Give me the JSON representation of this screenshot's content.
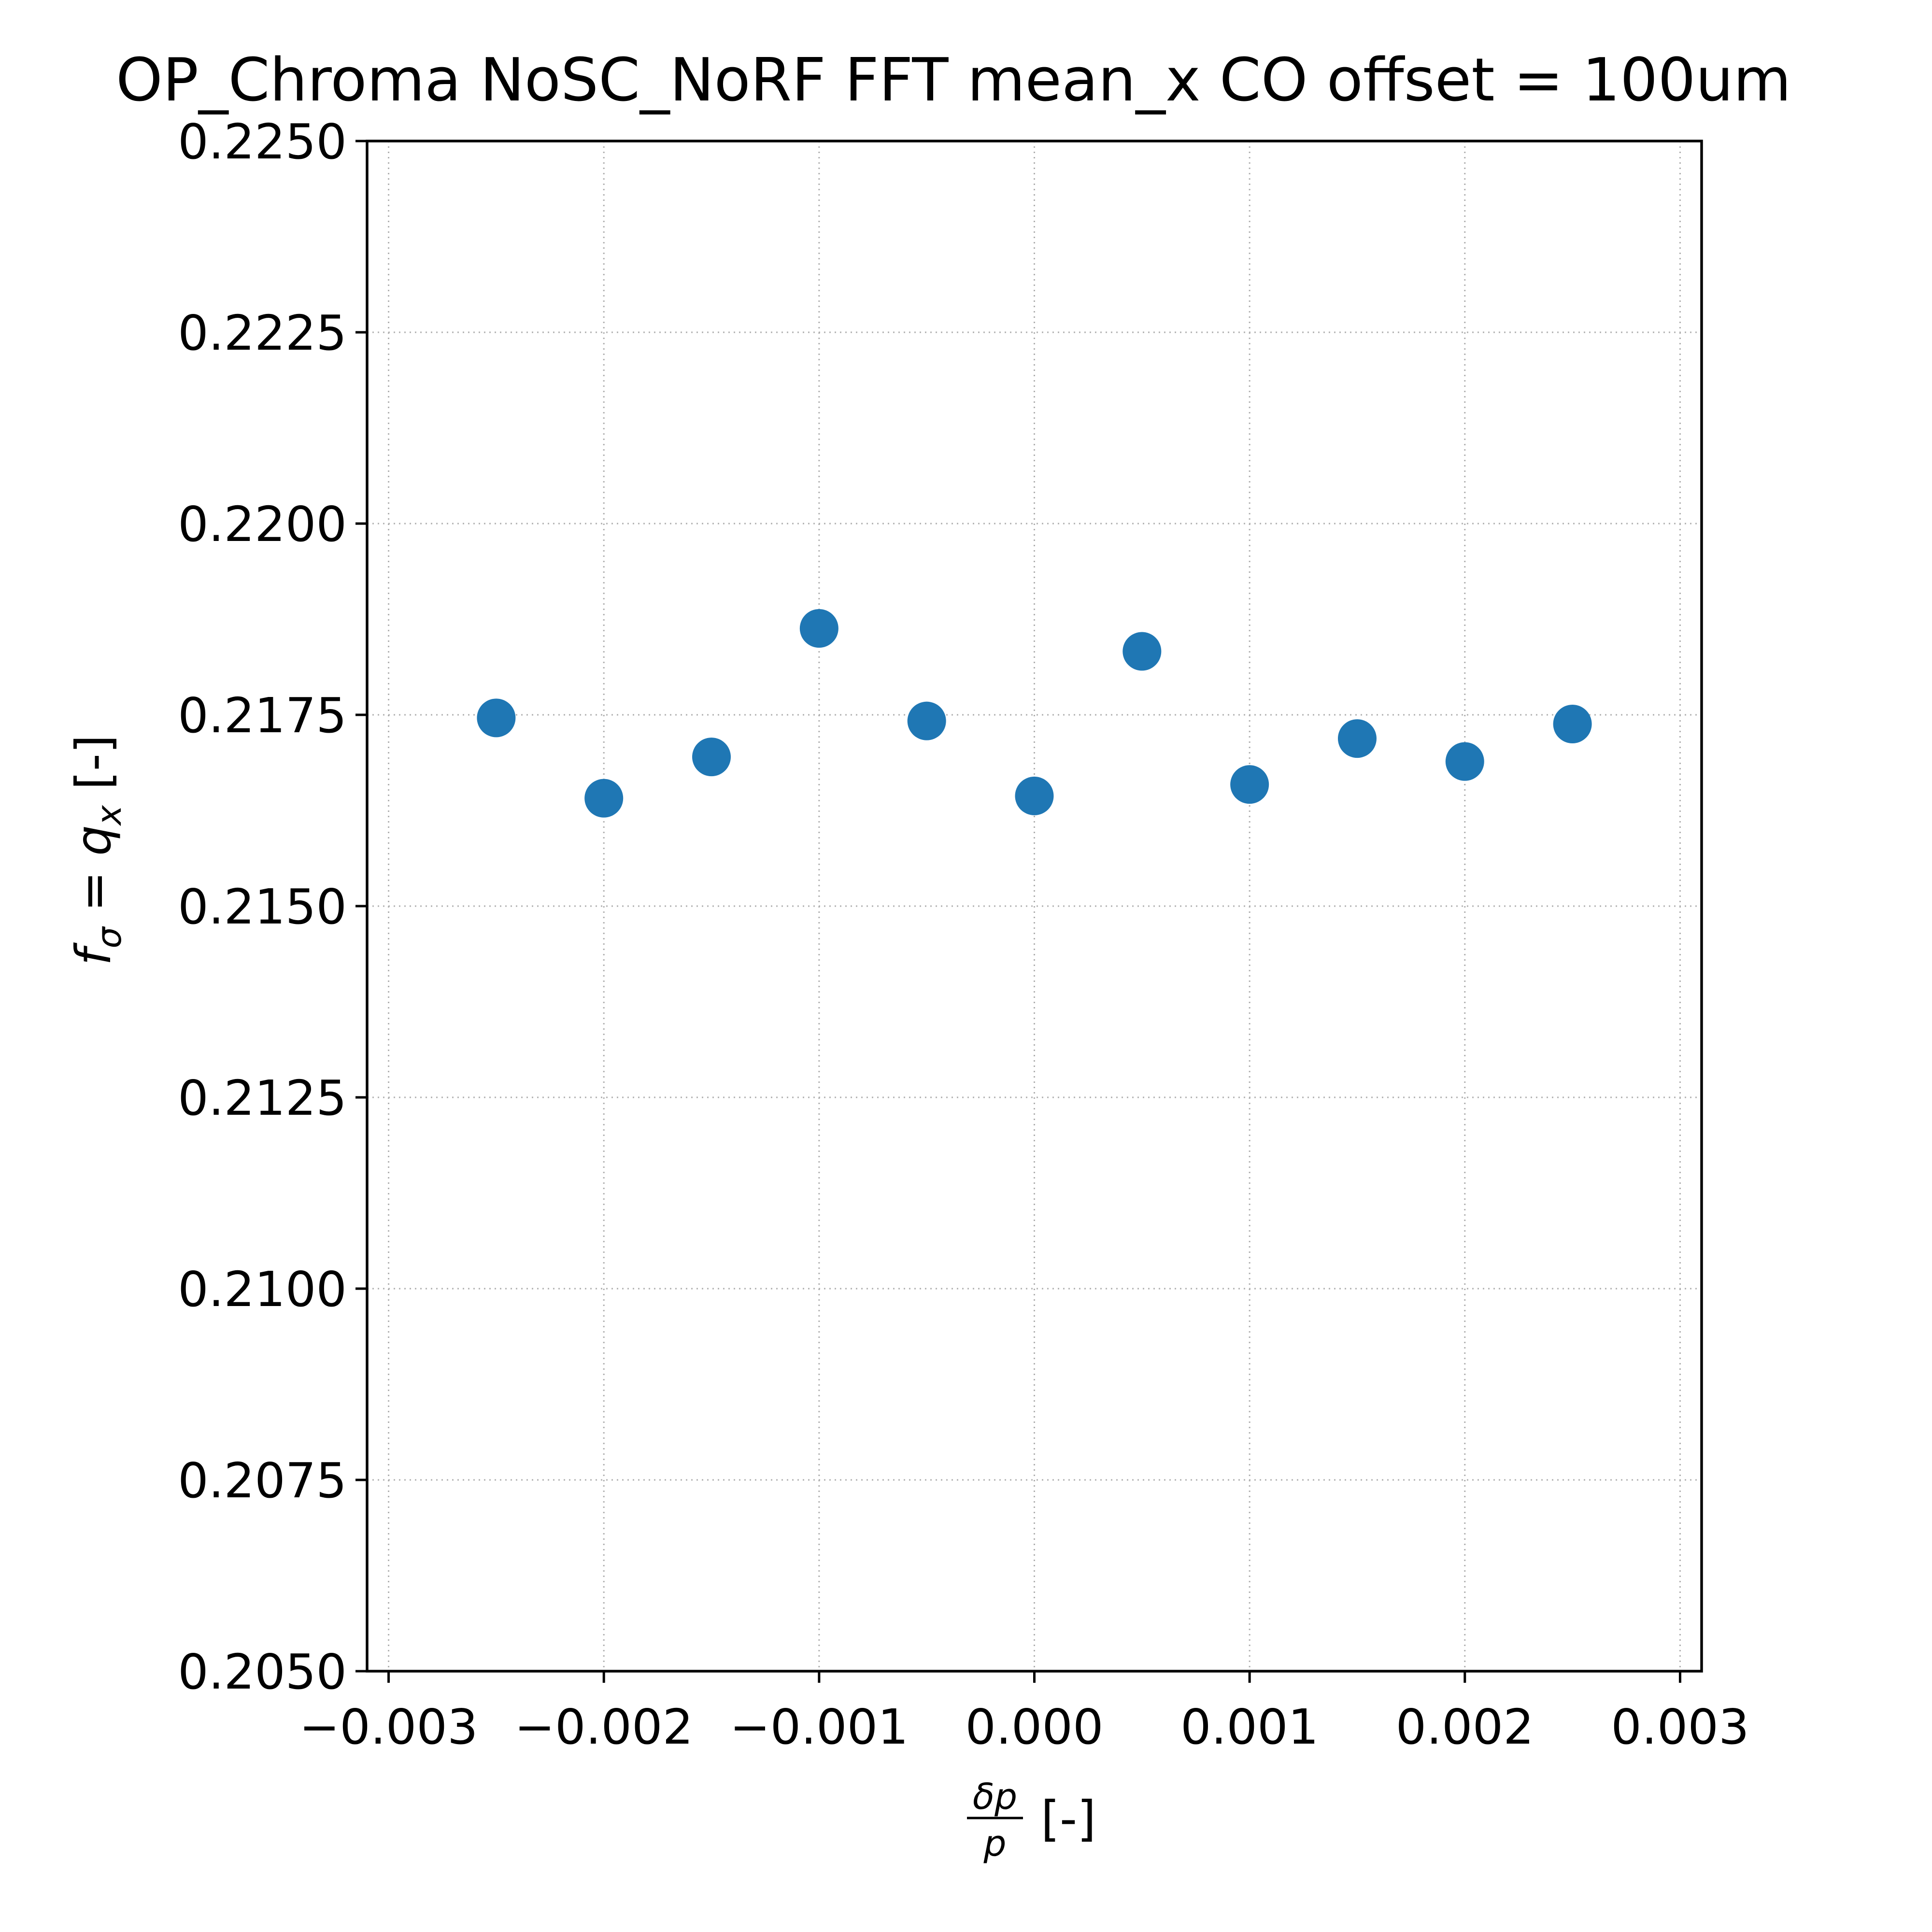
{
  "chart_data": {
    "type": "scatter",
    "title": "OP_Chroma NoSC_NoRF FFT mean_x  CO offset = 100um",
    "xlabel": {
      "numerator": "δp",
      "denominator": "p",
      "unit": "[-]"
    },
    "ylabel": {
      "f": "f",
      "f_sub": "σ",
      "eq": " = ",
      "q": "q",
      "q_sub": "x",
      "unit": " [-]"
    },
    "xlim": [
      -0.0031,
      0.0031
    ],
    "ylim": [
      0.205,
      0.225
    ],
    "x_ticks": [
      -0.003,
      -0.002,
      -0.001,
      0.0,
      0.001,
      0.002,
      0.003
    ],
    "x_tick_labels": [
      "−0.003",
      "−0.002",
      "−0.001",
      "0.000",
      "0.001",
      "0.002",
      "0.003"
    ],
    "y_ticks": [
      0.205,
      0.2075,
      0.21,
      0.2125,
      0.215,
      0.2175,
      0.22,
      0.2225,
      0.225
    ],
    "y_tick_labels": [
      "0.2050",
      "0.2075",
      "0.2100",
      "0.2125",
      "0.2150",
      "0.2175",
      "0.2200",
      "0.2225",
      "0.2250"
    ],
    "grid": true,
    "marker_color": "#1f77b4",
    "series": [
      {
        "x": [
          -0.0025,
          -0.002,
          -0.0015,
          -0.001,
          -0.0005,
          0.0,
          0.0005,
          0.001,
          0.0015,
          0.002,
          0.0025
        ],
        "y": [
          0.21746,
          0.21641,
          0.21695,
          0.21863,
          0.21742,
          0.21644,
          0.21833,
          0.21659,
          0.21719,
          0.21689,
          0.21738
        ]
      }
    ]
  }
}
